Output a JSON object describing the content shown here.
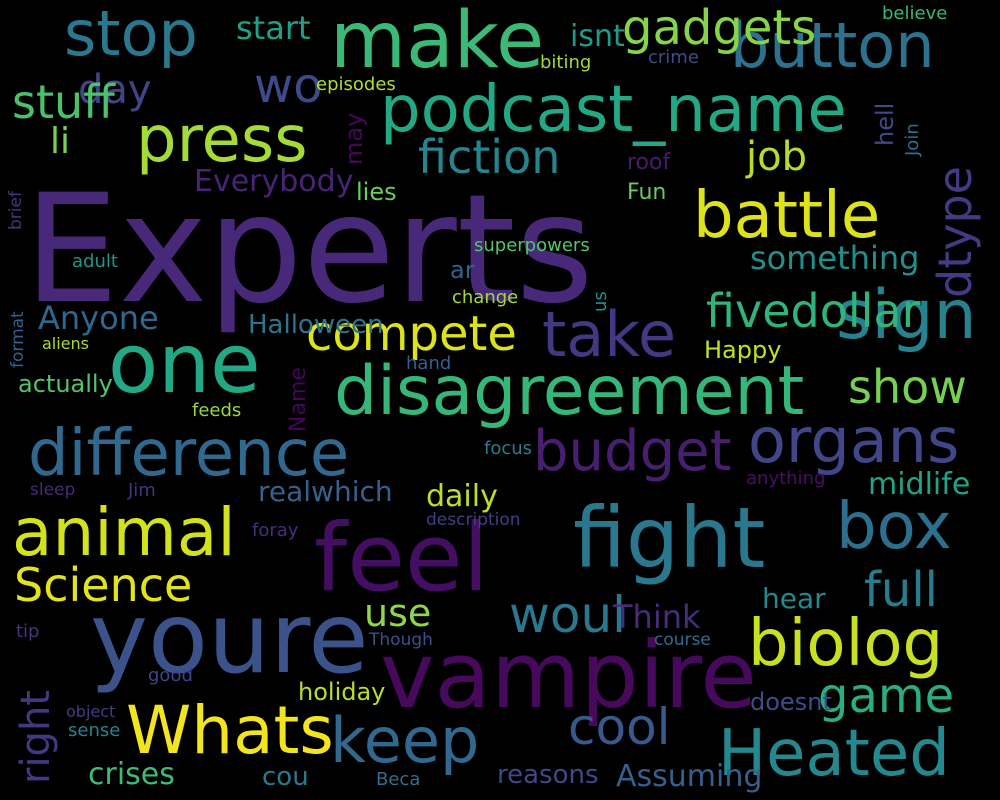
{
  "background": "#000000",
  "palette": "viridis",
  "words": [
    {
      "text": "Experts",
      "color": "#482878"
    },
    {
      "text": "make",
      "color": "#3aba76"
    },
    {
      "text": "fight",
      "color": "#2a788e"
    },
    {
      "text": "feel",
      "color": "#440f62"
    },
    {
      "text": "youre",
      "color": "#3b528b"
    },
    {
      "text": "vampire",
      "color": "#46095c"
    },
    {
      "text": "podcast_name",
      "color": "#22a884"
    },
    {
      "text": "button",
      "color": "#2c728e"
    },
    {
      "text": "stop",
      "color": "#2a788e"
    },
    {
      "text": "press",
      "color": "#a5db36"
    },
    {
      "text": "one",
      "color": "#22a884"
    },
    {
      "text": "disagreement",
      "color": "#35b779"
    },
    {
      "text": "difference",
      "color": "#31688e"
    },
    {
      "text": "organs",
      "color": "#404688"
    },
    {
      "text": "animal",
      "color": "#d2e21b"
    },
    {
      "text": "battle",
      "color": "#dde318"
    },
    {
      "text": "sign",
      "color": "#26828e"
    },
    {
      "text": "take",
      "color": "#453781"
    },
    {
      "text": "budget",
      "color": "#481f70"
    },
    {
      "text": "biolog",
      "color": "#c8e020"
    },
    {
      "text": "Heated",
      "color": "#23898e"
    },
    {
      "text": "Whats",
      "color": "#f2e51d"
    },
    {
      "text": "keep",
      "color": "#31688e"
    },
    {
      "text": "box",
      "color": "#2d708e"
    },
    {
      "text": "fiction",
      "color": "#25858e"
    },
    {
      "text": "compete",
      "color": "#dde318"
    },
    {
      "text": "Science",
      "color": "#e2e418"
    },
    {
      "text": "fivedollar",
      "color": "#2fb47c"
    },
    {
      "text": "show",
      "color": "#75d054"
    },
    {
      "text": "cool",
      "color": "#38598c"
    },
    {
      "text": "game",
      "color": "#29af7f"
    },
    {
      "text": "full",
      "color": "#287c8e"
    },
    {
      "text": "woul",
      "color": "#2a788e"
    },
    {
      "text": "day",
      "color": "#414487"
    },
    {
      "text": "gadgets",
      "color": "#86d549"
    },
    {
      "text": "job",
      "color": "#b5de2b"
    },
    {
      "text": "stuff",
      "color": "#4ac16d"
    },
    {
      "text": "wo",
      "color": "#3e4a89"
    },
    {
      "text": "li",
      "color": "#7ad151"
    },
    {
      "text": "use",
      "color": "#8fd744"
    },
    {
      "text": "Think",
      "color": "#472c7a"
    },
    {
      "text": "crises",
      "color": "#3dbc74"
    },
    {
      "text": "daily",
      "color": "#bddf26"
    },
    {
      "text": "realwhich",
      "color": "#34618d"
    },
    {
      "text": "midlife",
      "color": "#20a486"
    },
    {
      "text": "something",
      "color": "#21908d"
    },
    {
      "text": "Anyone",
      "color": "#30678e"
    },
    {
      "text": "Everybody",
      "color": "#482475"
    },
    {
      "text": "reasons",
      "color": "#3f4889"
    },
    {
      "text": "Assuming",
      "color": "#355f8d"
    },
    {
      "text": "holiday",
      "color": "#b8de29"
    },
    {
      "text": "hear",
      "color": "#23898e"
    },
    {
      "text": "start",
      "color": "#1fa188"
    },
    {
      "text": "isnt",
      "color": "#1e9b8a"
    },
    {
      "text": "lies",
      "color": "#6ccd5a"
    },
    {
      "text": "ar",
      "color": "#33628d"
    },
    {
      "text": "Halloween",
      "color": "#2b758e"
    },
    {
      "text": "Happy",
      "color": "#c5e021"
    },
    {
      "text": "cou",
      "color": "#297a8e"
    },
    {
      "text": "actually",
      "color": "#52c569"
    },
    {
      "text": "doesnt",
      "color": "#3e4c8a"
    },
    {
      "text": "adult",
      "color": "#1f968b"
    },
    {
      "text": "roof",
      "color": "#481b6d"
    },
    {
      "text": "Fun",
      "color": "#63cb5f"
    },
    {
      "text": "good",
      "color": "#404387"
    },
    {
      "text": "Jim",
      "color": "#453581"
    },
    {
      "text": "feeds",
      "color": "#95d840"
    },
    {
      "text": "anything",
      "color": "#471063"
    },
    {
      "text": "Beca",
      "color": "#2e6e8e"
    },
    {
      "text": "superpowers",
      "color": "#54c568"
    },
    {
      "text": "change",
      "color": "#a2da37"
    },
    {
      "text": "episodes",
      "color": "#b0dd2f"
    },
    {
      "text": "believe",
      "color": "#37b878"
    },
    {
      "text": "biting",
      "color": "#a0da39"
    },
    {
      "text": "crime",
      "color": "#3d4e8a"
    },
    {
      "text": "focus",
      "color": "#287d8e"
    },
    {
      "text": "foray",
      "color": "#472e7c"
    },
    {
      "text": "hand",
      "color": "#34608d"
    },
    {
      "text": "aliens",
      "color": "#a8db34"
    },
    {
      "text": "course",
      "color": "#2f6c8e"
    },
    {
      "text": "Though",
      "color": "#3b518b"
    },
    {
      "text": "tip",
      "color": "#463480"
    },
    {
      "text": "sleep",
      "color": "#482979"
    },
    {
      "text": "description",
      "color": "#433e85"
    },
    {
      "text": "sense",
      "color": "#25838e"
    },
    {
      "text": "object",
      "color": "#443b84"
    },
    {
      "text": "dtype",
      "color": "#443983"
    },
    {
      "text": "right",
      "color": "#453882"
    },
    {
      "text": "may",
      "color": "#46075a"
    },
    {
      "text": "hell",
      "color": "#3e4989"
    },
    {
      "text": "Name",
      "color": "#450559"
    },
    {
      "text": "us",
      "color": "#20928c"
    },
    {
      "text": "Join",
      "color": "#2e6f8e"
    },
    {
      "text": "format",
      "color": "#34618d"
    },
    {
      "text": "brief",
      "color": "#46337f"
    }
  ]
}
